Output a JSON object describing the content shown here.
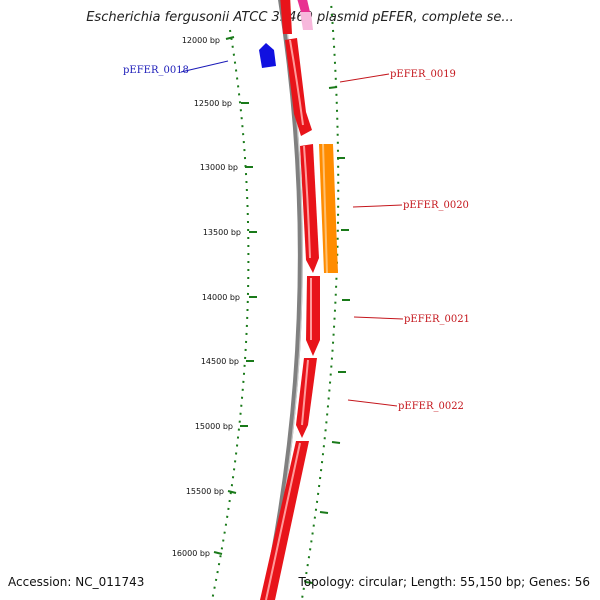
{
  "title": "Escherichia fergusonii ATCC 35469 plasmid pEFER, complete se...",
  "accession": "Accession: NC_011743",
  "summary": "Topology: circular; Length: 55,150 bp; Genes: 56",
  "ticks": [
    "12000 bp",
    "12500 bp",
    "13000 bp",
    "13500 bp",
    "14000 bp",
    "14500 bp",
    "15000 bp",
    "15500 bp",
    "16000 bp"
  ],
  "genes": [
    {
      "name": "pEFER_0018",
      "strand": "reverse",
      "color": "#1010e0",
      "label_color": "#1a1ab8"
    },
    {
      "name": "pEFER_0019",
      "strand": "forward",
      "color": "#e8141a",
      "label_color": "#c4161c"
    },
    {
      "name": "pEFER_0020",
      "strand": "forward",
      "color": "#ff8c00",
      "label_color": "#c4161c"
    },
    {
      "name": "pEFER_0021",
      "strand": "forward",
      "color": "#e8141a",
      "label_color": "#c4161c"
    },
    {
      "name": "pEFER_0022",
      "strand": "forward",
      "color": "#e8141a",
      "label_color": "#c4161c"
    }
  ],
  "colors": {
    "backbone": "#808080",
    "gc_skew": "#1a7a1a",
    "forward_cds": "#e8141a",
    "rna": "#ff8c00",
    "reverse_cds": "#1010e0",
    "top_feature": "#e83090"
  }
}
